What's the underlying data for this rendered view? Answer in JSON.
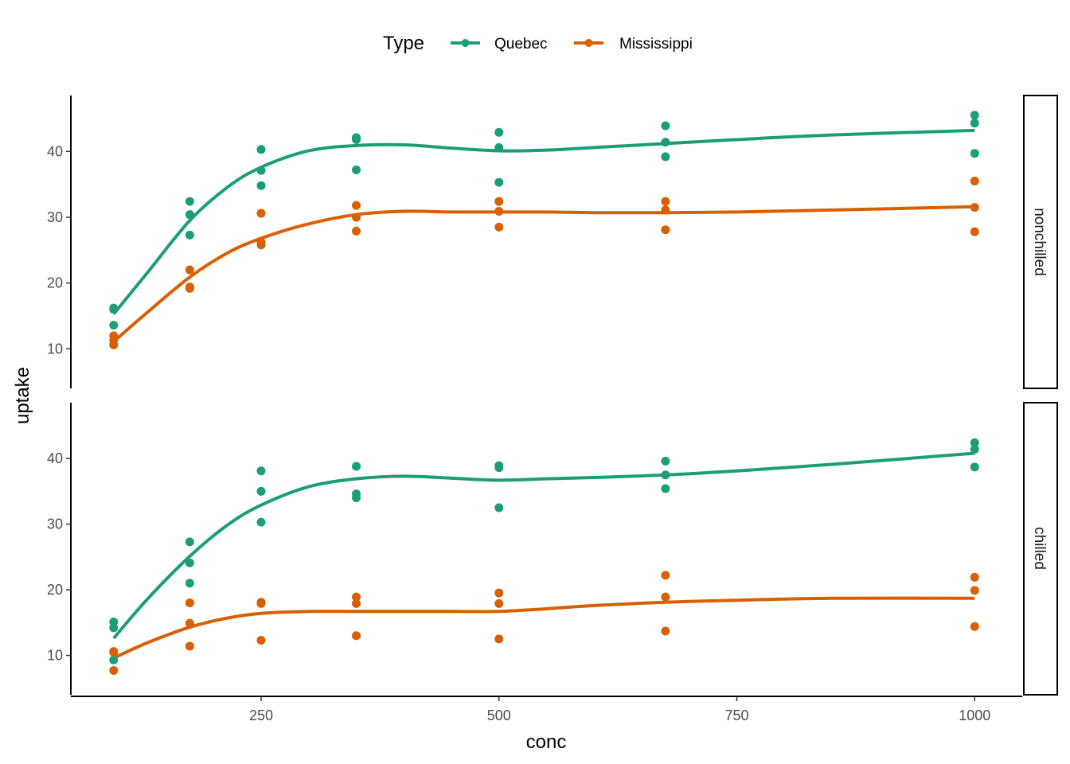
{
  "chart_data": {
    "type": "scatter",
    "x_label": "conc",
    "y_label": "uptake",
    "legend": {
      "title": "Type",
      "position": "top",
      "entries": [
        "Quebec",
        "Mississippi"
      ]
    },
    "colors": {
      "Quebec": "#1b9e77",
      "Mississippi": "#d95f02"
    },
    "x_range": [
      50,
      1050
    ],
    "x_ticks": [
      250,
      500,
      750,
      1000
    ],
    "y_range": [
      4,
      48.5
    ],
    "y_ticks": [
      10,
      20,
      30,
      40
    ],
    "grid": false,
    "panels": [
      {
        "strip": "nonchilled",
        "points": {
          "Quebec": [
            [
              95,
              16.0
            ],
            [
              95,
              13.6
            ],
            [
              95,
              16.2
            ],
            [
              175,
              30.4
            ],
            [
              175,
              27.3
            ],
            [
              175,
              32.4
            ],
            [
              250,
              34.8
            ],
            [
              250,
              37.1
            ],
            [
              250,
              40.3
            ],
            [
              350,
              37.2
            ],
            [
              350,
              41.8
            ],
            [
              350,
              42.1
            ],
            [
              500,
              35.3
            ],
            [
              500,
              40.6
            ],
            [
              500,
              42.9
            ],
            [
              675,
              39.2
            ],
            [
              675,
              41.4
            ],
            [
              675,
              43.9
            ],
            [
              1000,
              39.7
            ],
            [
              1000,
              44.3
            ],
            [
              1000,
              45.5
            ]
          ],
          "Mississippi": [
            [
              95,
              10.6
            ],
            [
              95,
              12.0
            ],
            [
              95,
              11.3
            ],
            [
              175,
              19.2
            ],
            [
              175,
              22.0
            ],
            [
              175,
              19.4
            ],
            [
              250,
              26.2
            ],
            [
              250,
              30.6
            ],
            [
              250,
              25.8
            ],
            [
              350,
              30.0
            ],
            [
              350,
              31.8
            ],
            [
              350,
              27.9
            ],
            [
              500,
              30.9
            ],
            [
              500,
              32.4
            ],
            [
              500,
              28.5
            ],
            [
              675,
              32.4
            ],
            [
              675,
              31.1
            ],
            [
              675,
              28.1
            ],
            [
              1000,
              35.5
            ],
            [
              1000,
              31.5
            ],
            [
              1000,
              27.8
            ]
          ]
        },
        "smooth": {
          "Quebec": [
            [
              95,
              15.3
            ],
            [
              130,
              21.5
            ],
            [
              175,
              29.5
            ],
            [
              215,
              34.6
            ],
            [
              250,
              37.6
            ],
            [
              300,
              40.1
            ],
            [
              350,
              40.9
            ],
            [
              400,
              41.0
            ],
            [
              450,
              40.5
            ],
            [
              500,
              40.1
            ],
            [
              550,
              40.2
            ],
            [
              600,
              40.6
            ],
            [
              675,
              41.2
            ],
            [
              750,
              41.8
            ],
            [
              850,
              42.5
            ],
            [
              1000,
              43.2
            ]
          ],
          "Mississippi": [
            [
              95,
              11.1
            ],
            [
              130,
              15.5
            ],
            [
              175,
              20.9
            ],
            [
              215,
              24.6
            ],
            [
              250,
              26.8
            ],
            [
              300,
              29.0
            ],
            [
              350,
              30.4
            ],
            [
              400,
              30.9
            ],
            [
              450,
              30.8
            ],
            [
              500,
              30.8
            ],
            [
              550,
              30.8
            ],
            [
              600,
              30.7
            ],
            [
              675,
              30.7
            ],
            [
              750,
              30.8
            ],
            [
              850,
              31.1
            ],
            [
              1000,
              31.6
            ]
          ]
        }
      },
      {
        "strip": "chilled",
        "points": {
          "Quebec": [
            [
              95,
              14.2
            ],
            [
              95,
              9.3
            ],
            [
              95,
              15.1
            ],
            [
              175,
              24.1
            ],
            [
              175,
              27.3
            ],
            [
              175,
              21.0
            ],
            [
              250,
              30.3
            ],
            [
              250,
              35.0
            ],
            [
              250,
              38.1
            ],
            [
              350,
              34.6
            ],
            [
              350,
              38.8
            ],
            [
              350,
              34.0
            ],
            [
              500,
              38.9
            ],
            [
              500,
              38.6
            ],
            [
              500,
              32.5
            ],
            [
              675,
              39.6
            ],
            [
              675,
              37.5
            ],
            [
              675,
              35.4
            ],
            [
              1000,
              41.4
            ],
            [
              1000,
              42.4
            ],
            [
              1000,
              38.7
            ]
          ],
          "Mississippi": [
            [
              95,
              10.5
            ],
            [
              95,
              7.7
            ],
            [
              95,
              10.6
            ],
            [
              175,
              14.9
            ],
            [
              175,
              11.4
            ],
            [
              175,
              18.0
            ],
            [
              250,
              18.1
            ],
            [
              250,
              12.3
            ],
            [
              250,
              17.9
            ],
            [
              350,
              18.9
            ],
            [
              350,
              13.0
            ],
            [
              350,
              17.9
            ],
            [
              500,
              19.5
            ],
            [
              500,
              12.5
            ],
            [
              500,
              17.9
            ],
            [
              675,
              22.2
            ],
            [
              675,
              13.7
            ],
            [
              675,
              18.9
            ],
            [
              1000,
              21.9
            ],
            [
              1000,
              14.4
            ],
            [
              1000,
              19.9
            ]
          ]
        },
        "smooth": {
          "Quebec": [
            [
              95,
              12.6
            ],
            [
              130,
              18.5
            ],
            [
              175,
              25.1
            ],
            [
              215,
              29.9
            ],
            [
              250,
              32.9
            ],
            [
              300,
              35.7
            ],
            [
              350,
              36.9
            ],
            [
              400,
              37.3
            ],
            [
              450,
              37.0
            ],
            [
              500,
              36.7
            ],
            [
              550,
              36.9
            ],
            [
              600,
              37.1
            ],
            [
              675,
              37.5
            ],
            [
              750,
              38.1
            ],
            [
              850,
              39.1
            ],
            [
              1000,
              40.8
            ]
          ],
          "Mississippi": [
            [
              95,
              9.6
            ],
            [
              130,
              11.9
            ],
            [
              175,
              14.3
            ],
            [
              215,
              15.7
            ],
            [
              250,
              16.4
            ],
            [
              300,
              16.7
            ],
            [
              350,
              16.7
            ],
            [
              400,
              16.7
            ],
            [
              450,
              16.7
            ],
            [
              500,
              16.7
            ],
            [
              550,
              17.1
            ],
            [
              600,
              17.6
            ],
            [
              675,
              18.1
            ],
            [
              750,
              18.4
            ],
            [
              850,
              18.7
            ],
            [
              1000,
              18.7
            ]
          ]
        }
      }
    ]
  }
}
